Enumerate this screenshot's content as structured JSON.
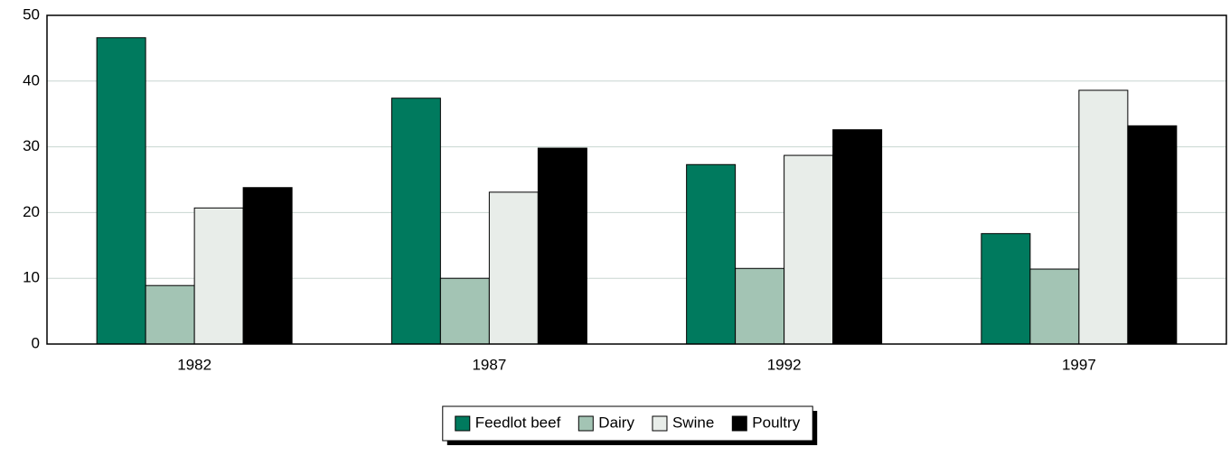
{
  "chart_data": {
    "type": "bar",
    "categories": [
      "1982",
      "1987",
      "1992",
      "1997"
    ],
    "series": [
      {
        "name": "Feedlot beef",
        "color": "#007a5e",
        "values": [
          46.6,
          37.4,
          27.3,
          16.8
        ]
      },
      {
        "name": "Dairy",
        "color": "#a3c4b4",
        "values": [
          8.9,
          10.0,
          11.5,
          11.4
        ]
      },
      {
        "name": "Swine",
        "color": "#e8ede9",
        "values": [
          20.7,
          23.1,
          28.7,
          38.6
        ]
      },
      {
        "name": "Poultry",
        "color": "#000000",
        "values": [
          23.8,
          29.8,
          32.6,
          33.2
        ]
      }
    ],
    "ylim": [
      0,
      50
    ],
    "yticks": [
      0,
      10,
      20,
      30,
      40,
      50
    ],
    "grid": true,
    "legend": "bottom"
  }
}
